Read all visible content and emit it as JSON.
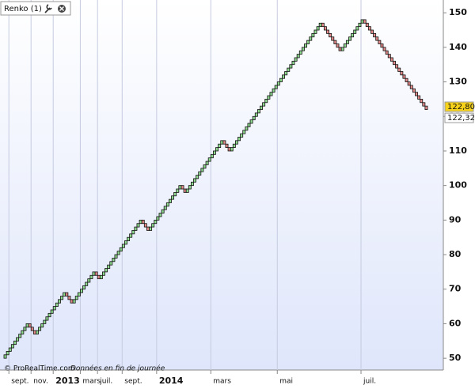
{
  "header": {
    "title": "Renko (1)"
  },
  "footer": {
    "source": "© ProRealTime.com",
    "note": "Données en fin de journée"
  },
  "chart_data": {
    "type": "renko",
    "brick_size": 1,
    "up_color": "#8fdc8f",
    "down_color": "#e58a8a",
    "values": [
      51,
      52,
      53,
      54,
      55,
      56,
      57,
      58,
      59,
      60,
      59,
      58,
      57,
      58,
      59,
      60,
      61,
      62,
      63,
      64,
      65,
      66,
      67,
      68,
      69,
      68,
      67,
      66,
      67,
      68,
      69,
      70,
      71,
      72,
      73,
      74,
      75,
      74,
      73,
      74,
      75,
      76,
      77,
      78,
      79,
      80,
      81,
      82,
      83,
      84,
      85,
      86,
      87,
      88,
      89,
      90,
      89,
      88,
      87,
      88,
      89,
      90,
      91,
      92,
      93,
      94,
      95,
      96,
      97,
      98,
      99,
      100,
      99,
      98,
      99,
      100,
      101,
      102,
      103,
      104,
      105,
      106,
      107,
      108,
      109,
      110,
      111,
      112,
      113,
      112,
      111,
      110,
      111,
      112,
      113,
      114,
      115,
      116,
      117,
      118,
      119,
      120,
      121,
      122,
      123,
      124,
      125,
      126,
      127,
      128,
      129,
      130,
      131,
      132,
      133,
      134,
      135,
      136,
      137,
      138,
      139,
      140,
      141,
      142,
      143,
      144,
      145,
      146,
      147,
      146,
      145,
      144,
      143,
      142,
      141,
      140,
      139,
      140,
      141,
      142,
      143,
      144,
      145,
      146,
      147,
      148,
      147,
      146,
      145,
      144,
      143,
      142,
      141,
      140,
      139,
      138,
      137,
      136,
      135,
      134,
      133,
      132,
      131,
      130,
      129,
      128,
      127,
      126,
      125,
      124,
      123,
      122
    ],
    "ylim": [
      46.6,
      153.7
    ],
    "yticks": [
      50,
      60,
      70,
      80,
      90,
      100,
      110,
      120,
      130,
      140,
      150
    ],
    "xticks": [
      {
        "value": 2,
        "label": "sept."
      },
      {
        "value": 11,
        "label": "nov."
      },
      {
        "value": 20,
        "label": "2013"
      },
      {
        "value": 31,
        "label": "mars"
      },
      {
        "value": 38,
        "label": "juil."
      },
      {
        "value": 48,
        "label": "sept."
      },
      {
        "value": 62,
        "label": "2014"
      },
      {
        "value": 84,
        "label": "mars"
      },
      {
        "value": 111,
        "label": "mai"
      },
      {
        "value": 145,
        "label": "juil."
      }
    ],
    "bold_xticks": [
      "2013",
      "2014"
    ],
    "xgrid": true,
    "price_markers": [
      {
        "value": 122.8,
        "label": "122,80",
        "color": "#f7d21a"
      },
      {
        "value": 122.32,
        "label": "122,32",
        "color": "#ffffff"
      }
    ]
  }
}
